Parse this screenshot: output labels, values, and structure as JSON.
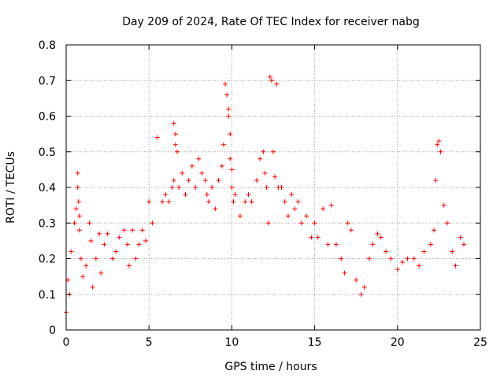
{
  "chart_data": {
    "type": "scatter",
    "title": "Day 209 of 2024, Rate Of TEC Index for receiver nabg",
    "xlabel": "GPS time / hours",
    "ylabel": "ROTI / TECUs",
    "xlim": [
      0,
      25
    ],
    "ylim": [
      0,
      0.8
    ],
    "x_ticks": [
      0,
      5,
      10,
      15,
      20,
      25
    ],
    "x_tick_labels": [
      "0",
      "5",
      "10",
      "15",
      "20",
      "25"
    ],
    "y_ticks": [
      0,
      0.1,
      0.2,
      0.3,
      0.4,
      0.5,
      0.6,
      0.7,
      0.8
    ],
    "y_tick_labels": [
      "0",
      "0.1",
      "0.2",
      "0.3",
      "0.4",
      "0.5",
      "0.6",
      "0.7",
      "0.8"
    ],
    "grid": true,
    "marker": "+",
    "color": "#ff0000",
    "series": [
      {
        "name": "ROTI",
        "x": [
          0.0,
          0.1,
          0.2,
          0.3,
          0.5,
          0.6,
          0.7,
          0.7,
          0.75,
          0.8,
          0.8,
          0.9,
          1.0,
          1.2,
          1.4,
          1.5,
          1.6,
          1.8,
          2.0,
          2.1,
          2.3,
          2.5,
          2.8,
          3.0,
          3.2,
          3.5,
          3.7,
          3.8,
          4.0,
          4.2,
          4.4,
          4.6,
          4.8,
          5.0,
          5.2,
          5.5,
          5.8,
          6.0,
          6.2,
          6.4,
          6.5,
          6.5,
          6.6,
          6.6,
          6.7,
          6.8,
          7.0,
          7.2,
          7.4,
          7.6,
          7.8,
          8.0,
          8.2,
          8.4,
          8.5,
          8.6,
          8.8,
          9.0,
          9.2,
          9.4,
          9.5,
          9.6,
          9.7,
          9.8,
          9.8,
          9.9,
          9.9,
          10.0,
          10.0,
          10.1,
          10.2,
          10.5,
          10.8,
          11.0,
          11.2,
          11.5,
          11.7,
          11.9,
          12.0,
          12.1,
          12.2,
          12.3,
          12.4,
          12.5,
          12.6,
          12.7,
          12.8,
          13.0,
          13.2,
          13.4,
          13.6,
          13.8,
          14.0,
          14.2,
          14.5,
          14.8,
          15.0,
          15.2,
          15.5,
          15.8,
          16.0,
          16.3,
          16.6,
          16.8,
          17.0,
          17.2,
          17.5,
          17.8,
          18.0,
          18.3,
          18.5,
          18.8,
          19.0,
          19.3,
          19.6,
          20.0,
          20.3,
          20.6,
          21.0,
          21.3,
          21.6,
          22.0,
          22.2,
          22.3,
          22.4,
          22.5,
          22.6,
          22.8,
          23.0,
          23.3,
          23.5,
          23.8,
          24.0
        ],
        "y": [
          0.05,
          0.14,
          0.1,
          0.22,
          0.3,
          0.34,
          0.44,
          0.4,
          0.36,
          0.32,
          0.28,
          0.2,
          0.15,
          0.18,
          0.3,
          0.25,
          0.12,
          0.2,
          0.27,
          0.16,
          0.24,
          0.27,
          0.2,
          0.22,
          0.26,
          0.28,
          0.24,
          0.18,
          0.28,
          0.2,
          0.24,
          0.28,
          0.25,
          0.36,
          0.3,
          0.54,
          0.36,
          0.38,
          0.36,
          0.4,
          0.42,
          0.58,
          0.52,
          0.55,
          0.5,
          0.4,
          0.44,
          0.38,
          0.42,
          0.46,
          0.4,
          0.48,
          0.44,
          0.42,
          0.38,
          0.36,
          0.4,
          0.34,
          0.42,
          0.46,
          0.52,
          0.69,
          0.66,
          0.62,
          0.6,
          0.55,
          0.48,
          0.45,
          0.4,
          0.36,
          0.38,
          0.32,
          0.36,
          0.38,
          0.36,
          0.42,
          0.48,
          0.5,
          0.44,
          0.4,
          0.3,
          0.71,
          0.7,
          0.5,
          0.43,
          0.69,
          0.4,
          0.4,
          0.36,
          0.32,
          0.38,
          0.34,
          0.36,
          0.3,
          0.32,
          0.26,
          0.3,
          0.26,
          0.34,
          0.24,
          0.35,
          0.24,
          0.2,
          0.16,
          0.3,
          0.28,
          0.14,
          0.1,
          0.12,
          0.2,
          0.24,
          0.27,
          0.26,
          0.22,
          0.2,
          0.17,
          0.19,
          0.2,
          0.2,
          0.18,
          0.22,
          0.24,
          0.28,
          0.42,
          0.52,
          0.53,
          0.5,
          0.35,
          0.3,
          0.22,
          0.18,
          0.26,
          0.24
        ]
      }
    ]
  }
}
